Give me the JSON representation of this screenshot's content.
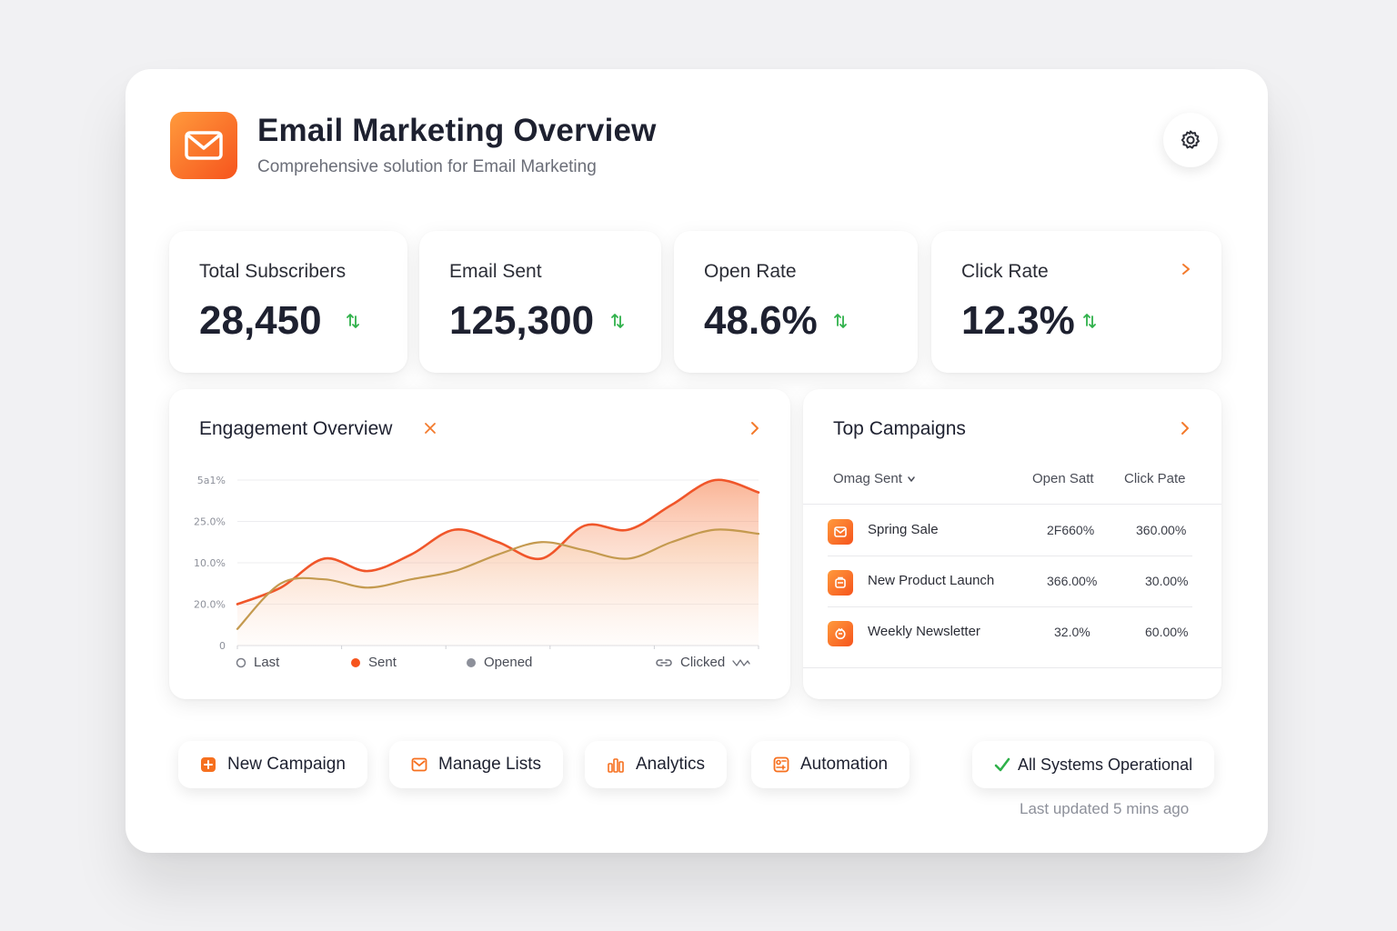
{
  "header": {
    "title": "Email Marketing Overview",
    "subtitle": "Comprehensive solution for Email Marketing",
    "logo_icon": "envelope-icon",
    "settings_icon": "gear-icon"
  },
  "stats": [
    {
      "label": "Total Subscribers",
      "value": "28,450",
      "trend_icon": "trend-arrow-icon"
    },
    {
      "label": "Email Sent",
      "value": "125,300",
      "trend_icon": "trend-arrow-icon"
    },
    {
      "label": "Open Rate",
      "value": "48.6%",
      "trend_icon": "trend-arrow-icon"
    },
    {
      "label": "Click Rate",
      "value": "12.3%",
      "trend_icon": "trend-arrow-icon"
    }
  ],
  "engagement": {
    "title": "Engagement Overview",
    "legend": [
      {
        "label": "Last",
        "marker": "hollow-circle"
      },
      {
        "label": "Sent",
        "marker": "orange-dot"
      },
      {
        "label": "Opened",
        "marker": "gray-dot"
      },
      {
        "label": "Clicked",
        "marker": "link-icon"
      }
    ]
  },
  "chart_data": {
    "type": "area",
    "title": "Engagement Overview",
    "y_tick_labels": [
      "5a1%",
      "25.0%",
      "10.0%",
      "20.0%",
      "0"
    ],
    "ylim": [
      0,
      40
    ],
    "x": [
      0,
      1,
      2,
      3,
      4,
      5,
      6,
      7,
      8,
      9,
      10,
      11,
      12
    ],
    "series": [
      {
        "name": "Sent",
        "values": [
          10,
          14,
          21,
          18,
          22,
          28,
          25,
          21,
          29,
          28,
          34,
          40,
          37
        ]
      },
      {
        "name": "Opened",
        "values": [
          4,
          15,
          16,
          14,
          16,
          18,
          22,
          25,
          23,
          21,
          25,
          28,
          27
        ]
      }
    ],
    "grid": true,
    "legend_position": "bottom"
  },
  "campaigns": {
    "title": "Top Campaigns",
    "columns": [
      "Omag Sent",
      "Open Satt",
      "Click Pate"
    ],
    "rows": [
      {
        "name": "Spring Sale",
        "open": "2F660%",
        "click": "360.00%"
      },
      {
        "name": "New Product Launch",
        "open": "366.00%",
        "click": "30.00%"
      },
      {
        "name": "Weekly Newsletter",
        "open": "32.0%",
        "click": "60.00%"
      }
    ]
  },
  "actions": [
    {
      "label": "New Campaign",
      "icon": "plus-square-icon"
    },
    {
      "label": "Manage Lists",
      "icon": "envelope-icon"
    },
    {
      "label": "Analytics",
      "icon": "bar-chart-icon"
    },
    {
      "label": "Automation",
      "icon": "automation-icon"
    }
  ],
  "status": {
    "label": "All Systems Operational",
    "icon": "check-icon",
    "updated": "Last updated 5 mins ago"
  },
  "colors": {
    "accent": "#f6541d",
    "accent_light": "#ff9a3c",
    "success": "#2fb14a",
    "opened_line": "#c49a4f"
  }
}
